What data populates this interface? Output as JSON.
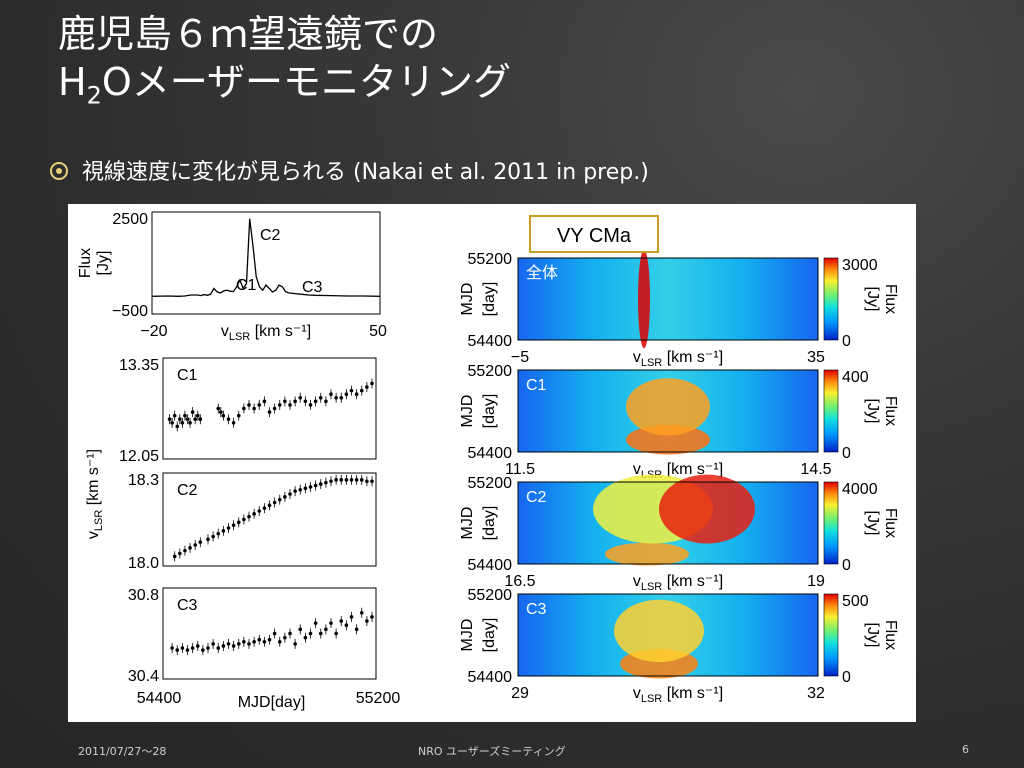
{
  "slide": {
    "title_line1": "鹿児島６ｍ望遠鏡での",
    "title_h": "H",
    "title_sub": "2",
    "title_rest": "Oメーザーモニタリング",
    "bullet": "視線速度に変化が見られる (Nakai et al. 2011 in prep.)",
    "footer_left": "2011/07/27〜28",
    "footer_center": "NRO ユーザーズミーティング",
    "footer_right": "6",
    "accent_color": "#e8d078",
    "bullet_icon": "circle-target-icon"
  },
  "chart_data": [
    {
      "type": "line",
      "ylabel_lines": [
        "Flux",
        "[Jy]"
      ],
      "xlabel": "v",
      "xlabel_sub": "LSR",
      "xlabel_unit": "[km s⁻¹]",
      "xlim": [
        -20,
        50
      ],
      "ylim": [
        -500,
        2500
      ],
      "xtick_labels": [
        "−20",
        "50"
      ],
      "ytick_labels": [
        "2500",
        "−500"
      ],
      "annotations": [
        "C1",
        "C2",
        "C3"
      ],
      "series": [
        {
          "x": [
            -20,
            -15,
            -12,
            -10,
            -8,
            -6,
            -5,
            -4,
            -3,
            -2,
            -1,
            0,
            1,
            2,
            3,
            4,
            5,
            6,
            7,
            8,
            9,
            10,
            11,
            12,
            13,
            14,
            15,
            16,
            17,
            18,
            19,
            20,
            21,
            22,
            24,
            26,
            28,
            30,
            35,
            40,
            45,
            50
          ],
          "values": [
            20,
            30,
            20,
            30,
            60,
            60,
            40,
            70,
            50,
            80,
            250,
            150,
            120,
            180,
            200,
            170,
            160,
            300,
            500,
            250,
            400,
            2300,
            1500,
            600,
            300,
            200,
            350,
            250,
            150,
            200,
            350,
            300,
            160,
            120,
            100,
            80,
            60,
            50,
            40,
            30,
            30,
            20
          ]
        }
      ]
    },
    {
      "type": "scatter",
      "label": "C1",
      "ylim": [
        12.05,
        13.35
      ],
      "xlim": [
        54400,
        55200
      ],
      "ytick_labels": [
        "13.35",
        "12.05"
      ],
      "x": [
        54410,
        54420,
        54430,
        54440,
        54450,
        54460,
        54470,
        54480,
        54490,
        54500,
        54510,
        54520,
        54530,
        54600,
        54610,
        54620,
        54640,
        54660,
        54680,
        54700,
        54720,
        54740,
        54760,
        54780,
        54800,
        54820,
        54840,
        54860,
        54880,
        54900,
        54920,
        54940,
        54960,
        54980,
        55000,
        55020,
        55040,
        55060,
        55080,
        55100,
        55120,
        55140,
        55160,
        55180,
        55200
      ],
      "values": [
        12.55,
        12.5,
        12.6,
        12.45,
        12.55,
        12.5,
        12.6,
        12.55,
        12.5,
        12.65,
        12.55,
        12.6,
        12.55,
        12.7,
        12.65,
        12.6,
        12.55,
        12.5,
        12.6,
        12.7,
        12.75,
        12.7,
        12.75,
        12.8,
        12.65,
        12.7,
        12.75,
        12.8,
        12.75,
        12.8,
        12.85,
        12.8,
        12.75,
        12.8,
        12.85,
        12.8,
        12.9,
        12.85,
        12.85,
        12.9,
        12.95,
        12.9,
        12.95,
        13.0,
        13.05
      ]
    },
    {
      "type": "scatter",
      "label": "C2",
      "ylim": [
        18.0,
        18.3
      ],
      "xlim": [
        54400,
        55200
      ],
      "ytick_labels": [
        "18.3",
        "18.0"
      ],
      "x": [
        54430,
        54450,
        54470,
        54490,
        54510,
        54530,
        54560,
        54580,
        54600,
        54620,
        54640,
        54660,
        54680,
        54700,
        54720,
        54740,
        54760,
        54780,
        54800,
        54820,
        54840,
        54860,
        54880,
        54900,
        54920,
        54940,
        54960,
        54980,
        55000,
        55020,
        55040,
        55060,
        55080,
        55100,
        55120,
        55140,
        55160,
        55180,
        55200
      ],
      "values": [
        18.02,
        18.03,
        18.04,
        18.05,
        18.06,
        18.07,
        18.08,
        18.09,
        18.1,
        18.11,
        18.12,
        18.13,
        18.14,
        18.15,
        18.16,
        18.17,
        18.18,
        18.19,
        18.2,
        18.21,
        18.22,
        18.23,
        18.24,
        18.25,
        18.255,
        18.26,
        18.265,
        18.27,
        18.275,
        18.28,
        18.285,
        18.29,
        18.29,
        18.29,
        18.29,
        18.29,
        18.29,
        18.285,
        18.285
      ]
    },
    {
      "type": "scatter",
      "label": "C3",
      "ylim": [
        30.4,
        30.8
      ],
      "xlim": [
        54400,
        55200
      ],
      "ytick_labels": [
        "30.8",
        "30.4"
      ],
      "xtick_labels": [
        "54400",
        "55200"
      ],
      "xlabel": "MJD[day]",
      "x": [
        54420,
        54440,
        54460,
        54480,
        54500,
        54520,
        54540,
        54560,
        54580,
        54600,
        54620,
        54640,
        54660,
        54680,
        54700,
        54720,
        54740,
        54760,
        54780,
        54800,
        54820,
        54840,
        54860,
        54880,
        54900,
        54920,
        54940,
        54960,
        54980,
        55000,
        55020,
        55040,
        55060,
        55080,
        55100,
        55120,
        55140,
        55160,
        55180,
        55200
      ],
      "values": [
        30.53,
        30.52,
        30.53,
        30.52,
        30.53,
        30.54,
        30.52,
        30.53,
        30.55,
        30.53,
        30.54,
        30.55,
        30.54,
        30.55,
        30.56,
        30.55,
        30.56,
        30.57,
        30.56,
        30.57,
        30.6,
        30.56,
        30.58,
        30.6,
        30.55,
        30.62,
        30.58,
        30.6,
        30.65,
        30.6,
        30.62,
        30.65,
        30.6,
        30.66,
        30.64,
        30.68,
        30.62,
        30.7,
        30.66,
        30.68
      ]
    },
    {
      "type": "heatmap",
      "label": "全体",
      "title": "VY CMa",
      "ylabel_lines": [
        "MJD",
        "[day]"
      ],
      "ylim": [
        54400,
        55200
      ],
      "xlim": [
        -5,
        35
      ],
      "colorbar_range": [
        0,
        3000
      ],
      "colorbar_label": "Flux [Jy]",
      "xtick_labels": [
        "−5",
        "35"
      ],
      "ytick_labels": [
        "55200",
        "54400"
      ],
      "colorbar_ticks": [
        "3000",
        "0"
      ]
    },
    {
      "type": "heatmap",
      "label": "C1",
      "ylabel_lines": [
        "MJD",
        "[day]"
      ],
      "ylim": [
        54400,
        55200
      ],
      "xlim": [
        11.5,
        14.5
      ],
      "colorbar_range": [
        0,
        400
      ],
      "colorbar_label": "Flux [Jy]",
      "xtick_labels": [
        "11.5",
        "14.5"
      ],
      "ytick_labels": [
        "55200",
        "54400"
      ],
      "colorbar_ticks": [
        "400",
        "0"
      ]
    },
    {
      "type": "heatmap",
      "label": "C2",
      "ylabel_lines": [
        "MJD",
        "[day]"
      ],
      "ylim": [
        54400,
        55200
      ],
      "xlim": [
        16.5,
        19
      ],
      "colorbar_range": [
        0,
        4000
      ],
      "colorbar_label": "Flux [Jy]",
      "xtick_labels": [
        "16.5",
        "19"
      ],
      "ytick_labels": [
        "55200",
        "54400"
      ],
      "colorbar_ticks": [
        "4000",
        "0"
      ]
    },
    {
      "type": "heatmap",
      "label": "C3",
      "ylabel_lines": [
        "MJD",
        "[day]"
      ],
      "ylim": [
        54400,
        55200
      ],
      "xlim": [
        29,
        32
      ],
      "colorbar_range": [
        0,
        500
      ],
      "colorbar_label": "Flux [Jy]",
      "xtick_labels": [
        "29",
        "32"
      ],
      "ytick_labels": [
        "55200",
        "54400"
      ],
      "colorbar_ticks": [
        "500",
        "0"
      ]
    }
  ],
  "shared_labels": {
    "scatter_ylabel": "v",
    "scatter_ylabel_sub": "LSR",
    "scatter_ylabel_unit": "[km s⁻¹]",
    "heat_xlabel": "v",
    "heat_xlabel_sub": "LSR",
    "heat_xlabel_unit": "[km s⁻¹]"
  }
}
